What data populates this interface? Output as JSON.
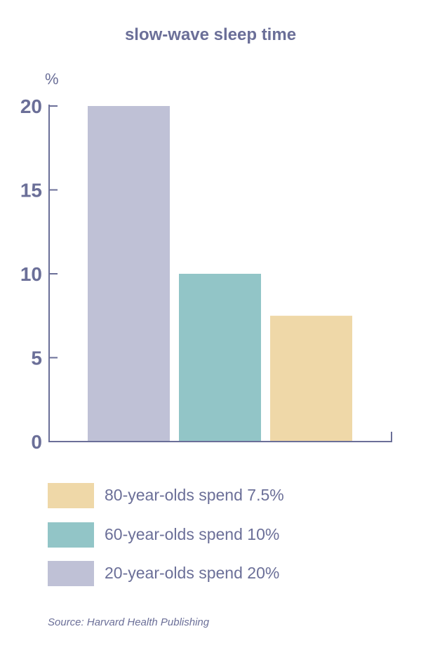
{
  "chart_data": {
    "type": "bar",
    "title": "slow-wave sleep time",
    "ylabel": "%",
    "xlabel": "",
    "ylim": [
      0,
      20
    ],
    "yticks": [
      0,
      5,
      10,
      15,
      20
    ],
    "bars": [
      {
        "name": "20-year-olds",
        "value": 20,
        "color": "#bfc1d6"
      },
      {
        "name": "60-year-olds",
        "value": 10,
        "color": "#92c5c7"
      },
      {
        "name": "80-year-olds",
        "value": 7.5,
        "color": "#efd8a8"
      }
    ],
    "legend": [
      {
        "label": "80-year-olds spend 7.5%",
        "color": "#efd8a8"
      },
      {
        "label": "60-year-olds spend 10%",
        "color": "#92c5c7"
      },
      {
        "label": "20-year-olds spend 20%",
        "color": "#bfc1d6"
      }
    ],
    "axis_color": "#6b6f98"
  },
  "source": "Source: Harvard Health Publishing"
}
